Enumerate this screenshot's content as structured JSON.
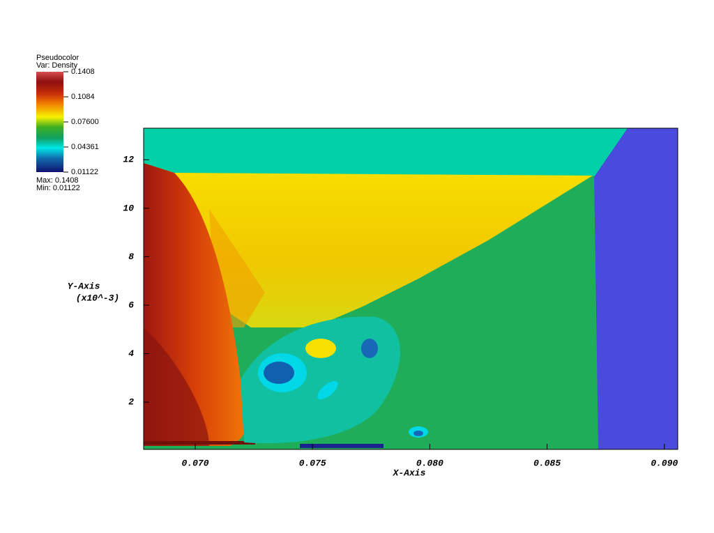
{
  "chart_data": {
    "type": "pseudocolor",
    "xlabel": "X-Axis",
    "ylabel": "Y-Axis",
    "ylabel_units": "(x10^-3)",
    "xlim": [
      0.0678,
      0.09057
    ],
    "ylim": [
      0.05,
      13.3
    ],
    "xticks": [
      {
        "value": 0.07,
        "label": "0.070"
      },
      0.075,
      {
        "value": 0.08,
        "label": "0.080"
      },
      0.085,
      {
        "value": 0.09,
        "label": "0.090"
      }
    ],
    "yticks": [
      2,
      4,
      6,
      8,
      10,
      12
    ],
    "legend": {
      "title": "Pseudocolor",
      "variable": "Var: Density",
      "range": [
        0.01122,
        0.1408
      ],
      "ticks": [
        0.1408,
        0.1084,
        {
          "value": 0.076,
          "label": "0.07600"
        },
        0.04361,
        0.01122
      ],
      "max_text": "Max: 0.1408",
      "min_text": "Min: 0.01122"
    }
  }
}
